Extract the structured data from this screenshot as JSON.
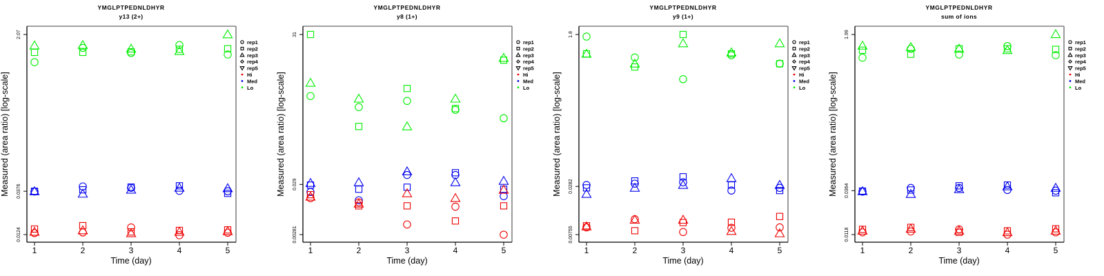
{
  "chart_data": [
    {
      "type": "scatter",
      "title": "YMGLPTPEDNLDHYR",
      "subtitle": "y13 (2+)",
      "xlabel": "Time (day)",
      "ylabel": "Measured (area ratio) [log-scale]",
      "yscale": "log",
      "x_ticks": [
        1,
        2,
        3,
        4,
        5
      ],
      "y_ticks": [
        0.0124,
        0.0376,
        2.07
      ],
      "y_tick_labels": [
        "0.0124",
        "0.0376",
        "2.07"
      ],
      "legend_position": "right",
      "series": [
        {
          "name": "Lo",
          "color": "#00ee00",
          "reps": {
            "rep1": [
              1.02,
              1.47,
              1.29,
              1.58,
              1.24
            ],
            "rep2": [
              1.31,
              1.31,
              1.33,
              1.42,
              1.44
            ],
            "rep3": [
              1.56,
              1.58,
              1.44,
              1.35,
              2.07
            ]
          }
        },
        {
          "name": "Med",
          "color": "#0000ee",
          "reps": {
            "rep1": [
              0.0373,
              0.0425,
              0.041,
              0.038,
              0.0376
            ],
            "rep2": [
              0.0376,
              0.039,
              0.0418,
              0.0432,
              0.0356
            ],
            "rep3": [
              0.0374,
              0.0352,
              0.039,
              0.041,
              0.0405
            ]
          }
        },
        {
          "name": "Hi",
          "color": "#ee0000",
          "reps": {
            "rep1": [
              0.0129,
              0.0131,
              0.0149,
              0.0122,
              0.013
            ],
            "rep2": [
              0.0143,
              0.0156,
              0.0133,
              0.0138,
              0.014
            ],
            "rep3": [
              0.0133,
              0.0138,
              0.0128,
              0.0133,
              0.0135
            ]
          }
        }
      ]
    },
    {
      "type": "scatter",
      "title": "YMGLPTPEDNLDHYR",
      "subtitle": "y8 (1+)",
      "xlabel": "Time (day)",
      "ylabel": "Measured (area ratio) [log-scale]",
      "yscale": "log",
      "x_ticks": [
        1,
        2,
        3,
        4,
        5
      ],
      "y_ticks": [
        0.00281,
        0.029,
        31
      ],
      "y_tick_labels": [
        "0.00281",
        "0.029",
        "31"
      ],
      "legend_position": "right",
      "series": [
        {
          "name": "Lo",
          "color": "#00ee00",
          "reps": {
            "rep1": [
              1.77,
              1.06,
              1.41,
              0.93,
              0.63
            ],
            "rep2": [
              31,
              0.43,
              2.52,
              0.99,
              9.4
            ],
            "rep3": [
              3.26,
              1.56,
              0.43,
              1.56,
              10.4
            ]
          }
        },
        {
          "name": "Med",
          "color": "#0000ee",
          "reps": {
            "rep1": [
              0.0204,
              0.0139,
              0.045,
              0.045,
              0.0168
            ],
            "rep2": [
              0.0281,
              0.0232,
              0.0255,
              0.05,
              0.0232
            ],
            "rep3": [
              0.0309,
              0.0319,
              0.053,
              0.0319,
              0.034
            ]
          }
        },
        {
          "name": "Hi",
          "color": "#ee0000",
          "reps": {
            "rep1": [
              0.0153,
              0.0126,
              0.0045,
              0.0103,
              0.0028
            ],
            "rep2": [
              0.018,
              0.0107,
              0.0107,
              0.0053,
              0.0107
            ],
            "rep3": [
              0.0163,
              0.0118,
              0.0191,
              0.0153,
              0.0225
            ]
          }
        }
      ]
    },
    {
      "type": "scatter",
      "title": "YMGLPTPEDNLDHYR",
      "subtitle": "y9 (1+)",
      "xlabel": "Time (day)",
      "ylabel": "Measured (area ratio) [log-scale]",
      "yscale": "log",
      "x_ticks": [
        1,
        2,
        3,
        4,
        5
      ],
      "y_ticks": [
        0.00755,
        0.0282,
        1.8
      ],
      "y_tick_labels": [
        "0.00755",
        "0.0282",
        "1.8"
      ],
      "legend_position": "right",
      "series": [
        {
          "name": "Lo",
          "color": "#00ee00",
          "reps": {
            "rep1": [
              1.7,
              0.96,
              0.53,
              1.02,
              0.81
            ],
            "rep2": [
              1.06,
              0.74,
              1.8,
              1.06,
              0.81
            ],
            "rep3": [
              1.06,
              0.81,
              1.41,
              1.1,
              1.41
            ]
          }
        },
        {
          "name": "Med",
          "color": "#0000ee",
          "reps": {
            "rep1": [
              0.0293,
              0.0304,
              0.0316,
              0.0252,
              0.0271
            ],
            "rep2": [
              0.0271,
              0.0328,
              0.0367,
              0.0293,
              0.0252
            ],
            "rep3": [
              0.0229,
              0.0271,
              0.0293,
              0.0353,
              0.0293
            ]
          }
        },
        {
          "name": "Hi",
          "color": "#ee0000",
          "reps": {
            "rep1": [
              0.0092,
              0.0115,
              0.0081,
              0.0091,
              0.0092
            ],
            "rep2": [
              0.0096,
              0.0084,
              0.0105,
              0.0106,
              0.0124
            ],
            "rep3": [
              0.0094,
              0.0113,
              0.0113,
              0.0083,
              0.0078
            ]
          }
        }
      ]
    },
    {
      "type": "scatter",
      "title": "YMGLPTPEDNLDHYR",
      "subtitle": "sum of ions",
      "xlabel": "Time (day)",
      "ylabel": "Measured (area ratio) [log-scale]",
      "yscale": "log",
      "x_ticks": [
        1,
        2,
        3,
        4,
        5
      ],
      "y_ticks": [
        0.0118,
        0.0364,
        1.99
      ],
      "y_tick_labels": [
        "0.0118",
        "0.0364",
        "1.99"
      ],
      "legend_position": "right",
      "series": [
        {
          "name": "Lo",
          "color": "#00ee00",
          "reps": {
            "rep1": [
              1.1,
              1.38,
              1.19,
              1.48,
              1.17
            ],
            "rep2": [
              1.33,
              1.2,
              1.38,
              1.38,
              1.36
            ],
            "rep3": [
              1.49,
              1.44,
              1.38,
              1.33,
              2.0
            ]
          }
        },
        {
          "name": "Med",
          "color": "#0000ee",
          "reps": {
            "rep1": [
              0.0355,
              0.039,
              0.039,
              0.037,
              0.0364
            ],
            "rep2": [
              0.036,
              0.037,
              0.0412,
              0.042,
              0.0345
            ],
            "rep3": [
              0.0357,
              0.0333,
              0.0377,
              0.0405,
              0.039
            ]
          }
        },
        {
          "name": "Hi",
          "color": "#ee0000",
          "reps": {
            "rep1": [
              0.0125,
              0.0128,
              0.0135,
              0.0118,
              0.0125
            ],
            "rep2": [
              0.0135,
              0.0142,
              0.0125,
              0.013,
              0.0137
            ],
            "rep3": [
              0.013,
              0.0137,
              0.013,
              0.0125,
              0.013
            ]
          }
        }
      ]
    }
  ],
  "legend": {
    "entries": [
      {
        "label": "rep1",
        "symbol": "circle"
      },
      {
        "label": "rep2",
        "symbol": "square"
      },
      {
        "label": "rep3",
        "symbol": "triangle-up"
      },
      {
        "label": "rep4",
        "symbol": "diamond"
      },
      {
        "label": "rep5",
        "symbol": "triangle-down"
      },
      {
        "label": "Hi",
        "symbol": "dot",
        "color": "#ee0000"
      },
      {
        "label": "Med",
        "symbol": "dot",
        "color": "#0000ee"
      },
      {
        "label": "Lo",
        "symbol": "dot",
        "color": "#00ee00"
      }
    ]
  }
}
